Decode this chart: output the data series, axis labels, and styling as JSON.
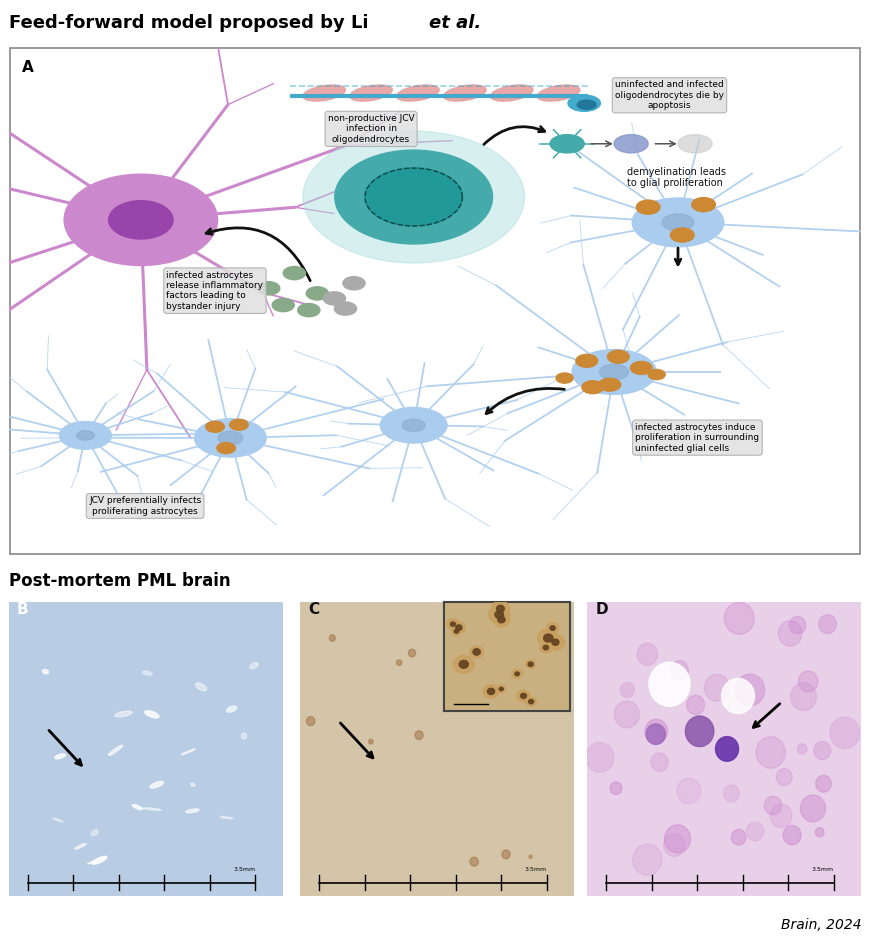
{
  "title_regular": "Feed-forward model proposed by Li ",
  "title_italic": "et al.",
  "panel_a_label": "A",
  "panel_b_label": "B",
  "panel_c_label": "C",
  "panel_d_label": "D",
  "section_b_title": "Post-mortem PML brain",
  "citation": "Brain, 2024",
  "bg_color": "#ffffff",
  "panel_a_bg": "#ffffff",
  "panel_b_bg": "#b8cce4",
  "panel_c_bg": "#d4c4a8",
  "panel_d_bg": "#e8d0e8",
  "panel_a_border": "#888888",
  "annotation_bg": "#e0e0e0",
  "astrocyte_color": "#cc88cc",
  "astrocyte_nucleus": "#9944aa",
  "oligodendrocyte_color": "#44aaaa",
  "glial_cell_color": "#aaccee",
  "virus_orange": "#cc8833",
  "arrow_color": "#111111",
  "myelin_pink": "#e8a0a0",
  "myelin_teal": "#44aacc",
  "text_annotations": {
    "non_productive": "non-productive JCV\ninfection in\noligodendrocytes",
    "uninfected_die": "uninfected and infected\noligodendrocytes die by\napoptosis",
    "demyelination": "demyelination leads\nto glial proliferation",
    "infected_release": "infected astrocytes\nrelease inflammatory\nfactors leading to\nbystander injury",
    "jcv_preferential": "JCV preferentially infects\nproliferating astrocytes",
    "infected_induce": "infected astrocytes induce\nproliferation in surrounding\nuninfected glial cells"
  },
  "figsize": [
    8.7,
    9.48
  ],
  "dpi": 100
}
